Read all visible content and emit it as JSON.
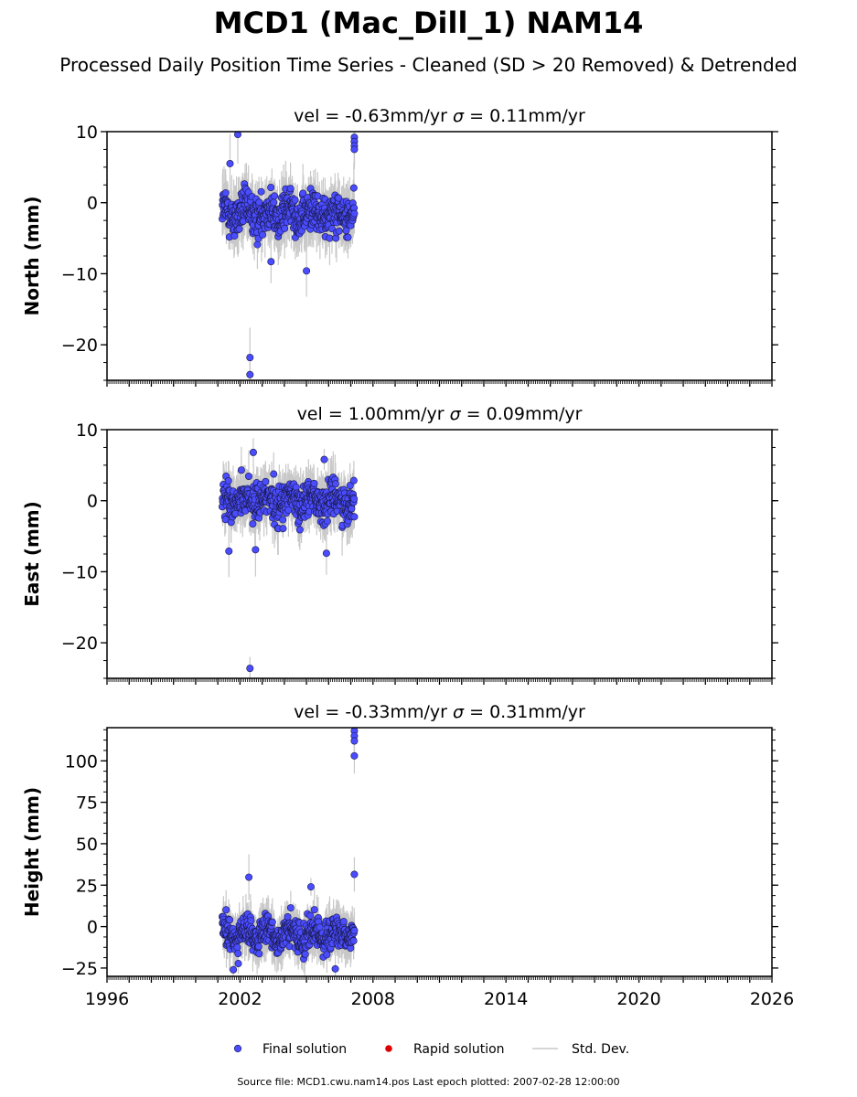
{
  "title": "MCD1 (Mac_Dill_1) NAM14",
  "subtitle": "Processed Daily Position Time Series - Cleaned (SD > 20 Removed) & Detrended",
  "source_note": "Source file: MCD1.cwu.nam14.pos  Last epoch plotted: 2007-02-28 12:00:00",
  "colors": {
    "final": "#4a4cff",
    "final_edge": "#1a1a4a",
    "rapid": "#dd0000",
    "std": "#c8c8c8",
    "axis": "#000000"
  },
  "legend": [
    {
      "label": "Final solution",
      "kind": "final"
    },
    {
      "label": "Rapid solution",
      "kind": "rapid"
    },
    {
      "label": "Std. Dev.",
      "kind": "std"
    }
  ],
  "chart_data": [
    {
      "type": "scatter",
      "ylabel": "North (mm)",
      "panel_title": {
        "prefix": "vel = -0.63mm/yr",
        "sigma_symbol": "σ",
        "sigma_text": " = 0.11mm/yr"
      },
      "xlim": [
        1996,
        2026
      ],
      "ylim": [
        -25,
        10
      ],
      "yticks": [
        10,
        0,
        -10,
        -20
      ],
      "xticks": [
        1996,
        2002,
        2008,
        2014,
        2020,
        2026
      ],
      "data_range": [
        2001.2,
        2007.16
      ],
      "center": -1.5,
      "spread": 2.2,
      "outliers": [
        [
          2001.9,
          9.6
        ],
        [
          2002.45,
          -21.8
        ],
        [
          2002.45,
          -24.2
        ],
        [
          2007.16,
          9.2
        ],
        [
          2007.16,
          8.6
        ],
        [
          2007.16,
          8.0
        ],
        [
          2007.16,
          7.5
        ],
        [
          2001.55,
          5.5
        ],
        [
          2005.0,
          -9.6
        ],
        [
          2003.4,
          -8.3
        ]
      ],
      "series": [
        {
          "name": "Final solution"
        }
      ]
    },
    {
      "type": "scatter",
      "ylabel": "East (mm)",
      "panel_title": {
        "prefix": "vel = 1.00mm/yr",
        "sigma_symbol": "σ",
        "sigma_text": " = 0.09mm/yr"
      },
      "xlim": [
        1996,
        2026
      ],
      "ylim": [
        -25,
        10
      ],
      "yticks": [
        10,
        0,
        -10,
        -20
      ],
      "xticks": [
        1996,
        2002,
        2008,
        2014,
        2020,
        2026
      ],
      "data_range": [
        2001.2,
        2007.16
      ],
      "center": 0.0,
      "spread": 2.0,
      "outliers": [
        [
          2002.45,
          -23.6
        ],
        [
          2002.6,
          6.8
        ],
        [
          2005.8,
          5.8
        ],
        [
          2001.5,
          -7.1
        ],
        [
          2005.9,
          -7.4
        ],
        [
          2002.7,
          -6.9
        ]
      ],
      "series": [
        {
          "name": "Final solution"
        }
      ]
    },
    {
      "type": "scatter",
      "ylabel": "Height (mm)",
      "panel_title": {
        "prefix": "vel = -0.33mm/yr",
        "sigma_symbol": "σ",
        "sigma_text": " = 0.31mm/yr"
      },
      "xlim": [
        1996,
        2026
      ],
      "ylim": [
        -30,
        120
      ],
      "yticks": [
        100,
        75,
        50,
        25,
        0,
        -25
      ],
      "xticks": [
        1996,
        2002,
        2008,
        2014,
        2020,
        2026
      ],
      "data_range": [
        2001.2,
        2007.16
      ],
      "center": -5.0,
      "spread": 7.5,
      "outliers": [
        [
          2007.16,
          118
        ],
        [
          2007.16,
          115
        ],
        [
          2007.16,
          112
        ],
        [
          2007.16,
          103
        ],
        [
          2007.16,
          31.5
        ],
        [
          2002.4,
          29.8
        ],
        [
          2005.2,
          24
        ],
        [
          2001.7,
          -26
        ],
        [
          2006.3,
          -25.5
        ]
      ],
      "series": [
        {
          "name": "Final solution"
        }
      ]
    }
  ]
}
